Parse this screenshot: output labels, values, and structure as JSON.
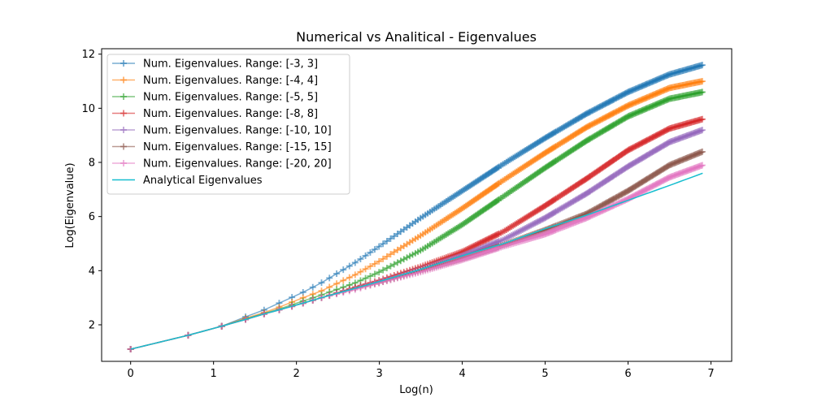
{
  "chart_data": {
    "type": "line",
    "title": "Numerical vs Analitical - Eigenvalues",
    "xlabel": "Log(n)",
    "ylabel": "Log(Eigenvalue)",
    "xlim": [
      -0.35,
      7.25
    ],
    "ylim": [
      0.65,
      12.2
    ],
    "xticks": [
      0,
      1,
      2,
      3,
      4,
      5,
      6,
      7
    ],
    "yticks": [
      2,
      4,
      6,
      8,
      10,
      12
    ],
    "grid": false,
    "legend_position": "top-left",
    "series": [
      {
        "name": "Num. Eigenvalues. Range: [-3, 3]",
        "color": "#1f77b4",
        "marker": "plus",
        "ymax": 11.6,
        "k": 0.18,
        "a": 1.1,
        "b": 0.07,
        "x": [
          0,
          0.69,
          1.1,
          1.39,
          1.61,
          1.79,
          2.08,
          2.3,
          2.71,
          3.0,
          3.5,
          4.0,
          4.5,
          5.0,
          5.5,
          6.0,
          6.5,
          6.9
        ],
        "y": [
          1.1,
          1.61,
          1.95,
          2.3,
          2.55,
          2.8,
          3.2,
          3.55,
          4.3,
          4.9,
          5.95,
          6.95,
          7.95,
          8.9,
          9.8,
          10.6,
          11.25,
          11.6
        ]
      },
      {
        "name": "Num. Eigenvalues. Range: [-4, 4]",
        "color": "#ff7f0e",
        "marker": "plus",
        "ymax": 11.0,
        "x": [
          0,
          0.69,
          1.1,
          1.39,
          1.61,
          1.79,
          2.08,
          2.3,
          2.71,
          3.0,
          3.5,
          4.0,
          4.5,
          5.0,
          5.5,
          6.0,
          6.5,
          6.9
        ],
        "y": [
          1.1,
          1.61,
          1.95,
          2.25,
          2.45,
          2.65,
          3.0,
          3.25,
          3.85,
          4.35,
          5.3,
          6.3,
          7.35,
          8.35,
          9.3,
          10.1,
          10.75,
          11.0
        ]
      },
      {
        "name": "Num. Eigenvalues. Range: [-5, 5]",
        "color": "#2ca02c",
        "marker": "plus",
        "ymax": 10.6,
        "x": [
          0,
          0.69,
          1.1,
          1.39,
          1.61,
          1.79,
          2.08,
          2.3,
          2.71,
          3.0,
          3.5,
          4.0,
          4.5,
          5.0,
          5.5,
          6.0,
          6.5,
          6.9
        ],
        "y": [
          1.1,
          1.61,
          1.95,
          2.22,
          2.42,
          2.58,
          2.88,
          3.1,
          3.55,
          3.95,
          4.75,
          5.7,
          6.75,
          7.8,
          8.8,
          9.7,
          10.35,
          10.6
        ]
      },
      {
        "name": "Num. Eigenvalues. Range: [-8, 8]",
        "color": "#d62728",
        "marker": "plus",
        "ymax": 9.6,
        "x": [
          0,
          0.69,
          1.1,
          1.39,
          1.61,
          1.79,
          2.08,
          2.3,
          2.71,
          3.0,
          3.5,
          4.0,
          4.5,
          5.0,
          5.5,
          6.0,
          6.5,
          6.9
        ],
        "y": [
          1.1,
          1.61,
          1.95,
          2.2,
          2.4,
          2.55,
          2.8,
          3.0,
          3.4,
          3.65,
          4.15,
          4.7,
          5.45,
          6.4,
          7.4,
          8.45,
          9.25,
          9.6
        ]
      },
      {
        "name": "Num. Eigenvalues. Range: [-10, 10]",
        "color": "#9467bd",
        "marker": "plus",
        "ymax": 9.2,
        "x": [
          0,
          0.69,
          1.1,
          1.39,
          1.61,
          1.79,
          2.08,
          2.3,
          2.71,
          3.0,
          3.5,
          4.0,
          4.5,
          5.0,
          5.5,
          6.0,
          6.5,
          6.9
        ],
        "y": [
          1.1,
          1.61,
          1.95,
          2.2,
          2.4,
          2.55,
          2.8,
          3.0,
          3.35,
          3.6,
          4.05,
          4.55,
          5.15,
          5.95,
          6.85,
          7.85,
          8.75,
          9.2
        ]
      },
      {
        "name": "Num. Eigenvalues. Range: [-15, 15]",
        "color": "#8c564b",
        "marker": "plus",
        "ymax": 8.4,
        "x": [
          0,
          0.69,
          1.1,
          1.39,
          1.61,
          1.79,
          2.08,
          2.3,
          2.71,
          3.0,
          3.5,
          4.0,
          4.5,
          5.0,
          5.5,
          6.0,
          6.5,
          6.9
        ],
        "y": [
          1.1,
          1.61,
          1.95,
          2.2,
          2.4,
          2.55,
          2.8,
          3.0,
          3.35,
          3.55,
          4.0,
          4.45,
          4.95,
          5.5,
          6.1,
          6.95,
          7.9,
          8.4
        ]
      },
      {
        "name": "Num. Eigenvalues. Range: [-20, 20]",
        "color": "#e377c2",
        "marker": "plus",
        "ymax": 7.9,
        "x": [
          0,
          0.69,
          1.1,
          1.39,
          1.61,
          1.79,
          2.08,
          2.3,
          2.71,
          3.0,
          3.5,
          4.0,
          4.5,
          5.0,
          5.5,
          6.0,
          6.5,
          6.9
        ],
        "y": [
          1.1,
          1.61,
          1.95,
          2.2,
          2.4,
          2.55,
          2.8,
          3.0,
          3.3,
          3.55,
          3.95,
          4.4,
          4.9,
          5.35,
          5.95,
          6.65,
          7.45,
          7.9
        ]
      },
      {
        "name": "Analytical Eigenvalues",
        "color": "#17becf",
        "marker": "none",
        "x": [
          0,
          0.69,
          1.1,
          1.39,
          1.61,
          1.79,
          2.08,
          2.3,
          2.71,
          3.0,
          3.5,
          4.0,
          4.5,
          5.0,
          5.5,
          6.0,
          6.5,
          6.9
        ],
        "y": [
          1.1,
          1.61,
          1.95,
          2.2,
          2.4,
          2.55,
          2.8,
          3.0,
          3.35,
          3.6,
          4.05,
          4.55,
          5.0,
          5.55,
          6.05,
          6.6,
          7.15,
          7.6
        ]
      }
    ]
  }
}
